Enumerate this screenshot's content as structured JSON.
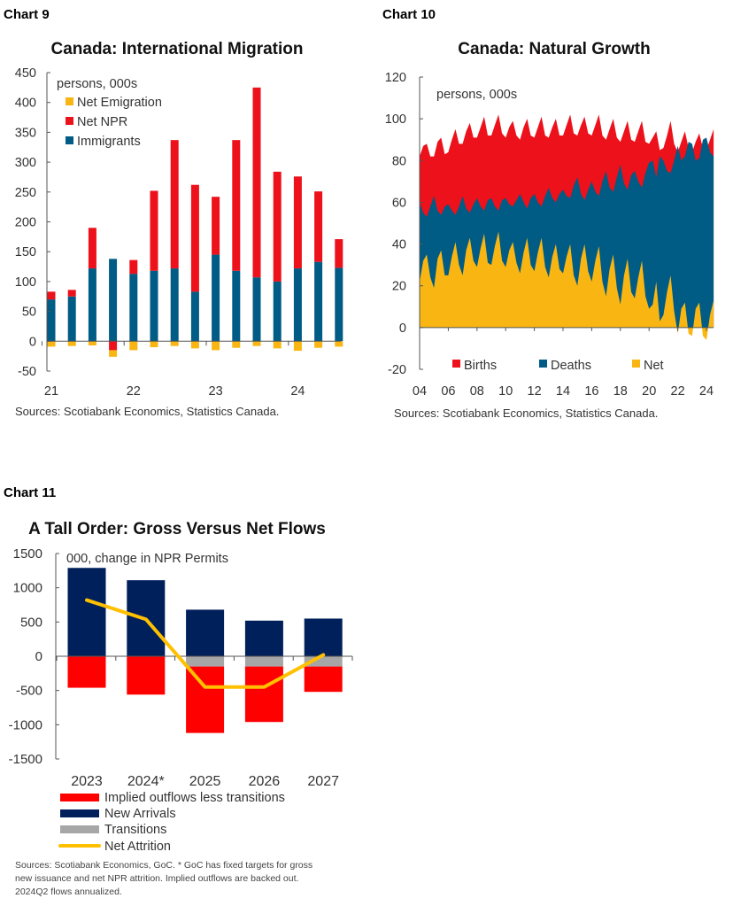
{
  "chart_data": [
    {
      "label": "Chart 9",
      "type": "bar",
      "stacked": true,
      "title": "Canada: International Migration",
      "unit": "persons, 000s",
      "x_tick_labels": [
        "21",
        "22",
        "23",
        "24"
      ],
      "categories": [
        "21Q1",
        "21Q2",
        "21Q3",
        "21Q4",
        "22Q1",
        "22Q2",
        "22Q3",
        "22Q4",
        "23Q1",
        "23Q2",
        "23Q3",
        "23Q4",
        "24Q1",
        "24Q2",
        "24Q3"
      ],
      "series": [
        {
          "name": "Net Emigration",
          "color": "#F9B612",
          "values": [
            -9,
            -8,
            -7,
            -11,
            -15,
            -10,
            -8,
            -12,
            -15,
            -11,
            -8,
            -12,
            -16,
            -11,
            -9
          ]
        },
        {
          "name": "Net NPR",
          "color": "#EC111A",
          "values": [
            13,
            11,
            68,
            -15,
            23,
            134,
            215,
            179,
            97,
            219,
            318,
            184,
            154,
            118,
            48
          ]
        },
        {
          "name": "Immigrants",
          "color": "#005B85",
          "values": [
            70,
            75,
            122,
            138,
            113,
            118,
            122,
            83,
            145,
            118,
            107,
            100,
            122,
            133,
            123
          ]
        }
      ],
      "y_ticks": [
        450,
        400,
        350,
        300,
        250,
        200,
        150,
        100,
        50,
        0,
        -50
      ],
      "ylim": [
        -50,
        450
      ],
      "legend": "top-left",
      "source": "Sources: Scotiabank Economics, Statistics Canada."
    },
    {
      "label": "Chart 10",
      "type": "area",
      "title": "Canada: Natural Growth",
      "unit": "persons, 000s",
      "x_start": "2004Q1",
      "frequency": "quarterly",
      "x_tick_labels": [
        "04",
        "06",
        "08",
        "10",
        "12",
        "14",
        "16",
        "18",
        "20",
        "22",
        "24"
      ],
      "series": [
        {
          "name": "Births",
          "color": "#EC111A",
          "values": [
            82,
            87,
            88,
            82,
            82,
            89,
            91,
            83,
            84,
            90,
            95,
            88,
            88,
            94,
            98,
            91,
            91,
            96,
            101,
            92,
            92,
            97,
            102,
            93,
            91,
            96,
            99,
            92,
            90,
            96,
            100,
            92,
            91,
            96,
            101,
            92,
            91,
            96,
            100,
            92,
            92,
            97,
            102,
            93,
            92,
            97,
            101,
            93,
            92,
            97,
            102,
            92,
            90,
            95,
            100,
            91,
            89,
            94,
            99,
            90,
            89,
            94,
            99,
            89,
            88,
            91,
            94,
            85,
            86,
            92,
            99,
            88,
            84,
            89,
            94,
            86,
            84,
            89,
            93,
            86,
            85,
            90,
            95
          ]
        },
        {
          "name": "Deaths",
          "color": "#005B85",
          "values": [
            60,
            55,
            53,
            58,
            63,
            56,
            54,
            58,
            59,
            56,
            54,
            58,
            63,
            57,
            55,
            59,
            62,
            58,
            56,
            61,
            62,
            58,
            56,
            61,
            62,
            59,
            58,
            61,
            64,
            60,
            57,
            62,
            64,
            60,
            58,
            63,
            67,
            62,
            60,
            64,
            66,
            63,
            62,
            68,
            72,
            64,
            61,
            66,
            70,
            65,
            63,
            70,
            75,
            67,
            65,
            72,
            78,
            69,
            66,
            73,
            75,
            70,
            67,
            74,
            79,
            80,
            72,
            82,
            80,
            75,
            74,
            80,
            87,
            80,
            82,
            89,
            88,
            80,
            81,
            90,
            91,
            84,
            82
          ]
        },
        {
          "name": "Net",
          "color": "#F9B612",
          "values": [
            22,
            32,
            35,
            24,
            19,
            33,
            37,
            25,
            25,
            34,
            41,
            30,
            25,
            37,
            43,
            32,
            29,
            38,
            45,
            31,
            30,
            39,
            46,
            32,
            29,
            37,
            41,
            31,
            26,
            36,
            43,
            30,
            27,
            36,
            43,
            29,
            24,
            34,
            40,
            28,
            26,
            34,
            40,
            25,
            20,
            33,
            40,
            27,
            22,
            32,
            39,
            22,
            15,
            28,
            35,
            19,
            11,
            25,
            33,
            17,
            14,
            24,
            32,
            15,
            9,
            11,
            22,
            3,
            6,
            17,
            25,
            8,
            -3,
            9,
            12,
            -3,
            -4,
            9,
            12,
            -4,
            -6,
            6,
            13
          ]
        }
      ],
      "y_ticks": [
        120,
        100,
        80,
        60,
        40,
        20,
        0,
        -20
      ],
      "ylim": [
        -20,
        120
      ],
      "legend": "bottom",
      "source": "Sources: Scotiabank Economics, Statistics Canada."
    },
    {
      "label": "Chart 11",
      "type": "bar",
      "stacked": true,
      "title": "A Tall Order: Gross Versus Net Flows",
      "unit": "000, change in NPR Permits",
      "categories": [
        "2023",
        "2024*",
        "2025",
        "2026",
        "2027"
      ],
      "series": [
        {
          "name": "Implied outflows less transitions",
          "color": "#FF0000",
          "type": "bar",
          "values": [
            -460,
            -560,
            -970,
            -810,
            -370
          ]
        },
        {
          "name": "New Arrivals",
          "color": "#00205B",
          "type": "bar",
          "values": [
            1290,
            1110,
            680,
            520,
            550
          ]
        },
        {
          "name": "Transitions",
          "color": "#A6A6A6",
          "type": "bar",
          "values": [
            0,
            0,
            -150,
            -150,
            -150
          ]
        },
        {
          "name": "Net Attrition",
          "color": "#FFC000",
          "type": "line",
          "values": [
            820,
            540,
            -450,
            -450,
            20
          ]
        }
      ],
      "y_ticks": [
        1500,
        1000,
        500,
        0,
        -500,
        -1000,
        -1500
      ],
      "ylim": [
        -1500,
        1500
      ],
      "legend": "bottom",
      "source_lines": [
        "Sources: Scotiabank Economics, GoC. * GoC has fixed targets for gross",
        "new issuance and net NPR attrition. Implied outflows are backed out.",
        "2024Q2 flows annualized."
      ]
    }
  ]
}
